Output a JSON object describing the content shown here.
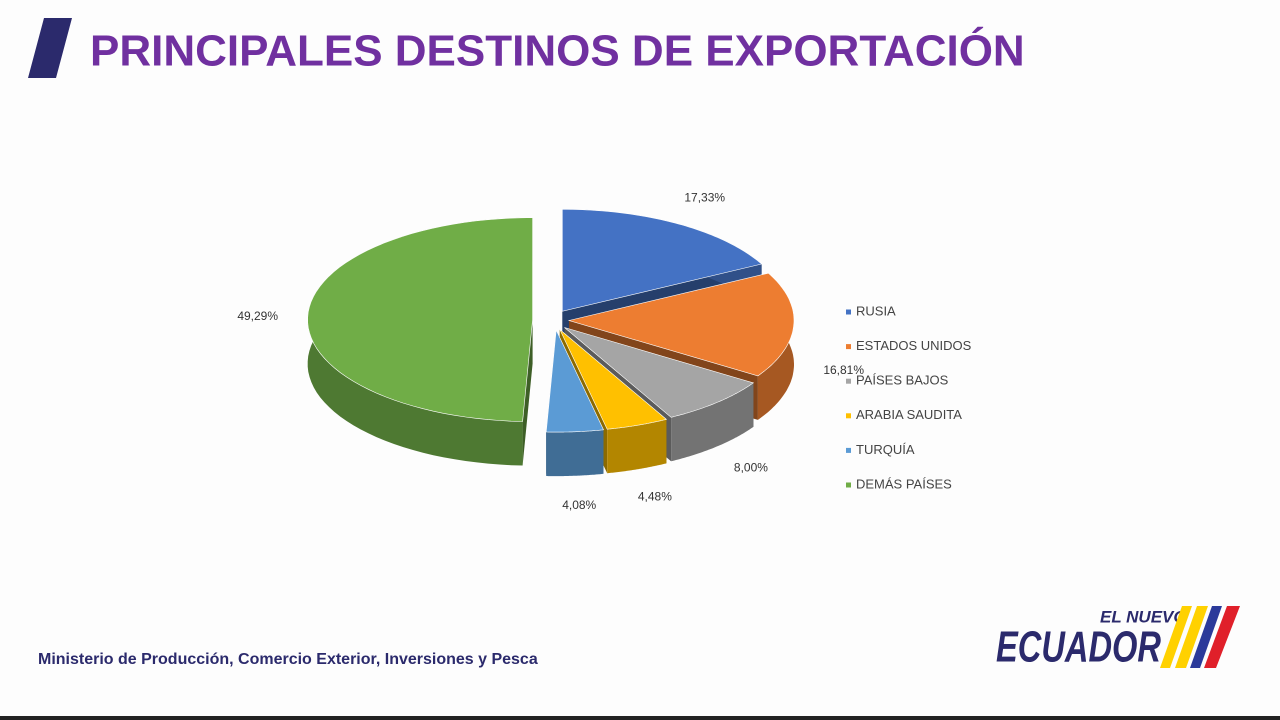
{
  "chart_data": {
    "type": "pie3d",
    "title": "PRINCIPALES DESTINOS DE EXPORTACIÓN",
    "categories": [
      "RUSIA",
      "ESTADOS UNIDOS",
      "PAÍSES BAJOS",
      "ARABIA SAUDITA",
      "TURQUÍA",
      "DEMÁS PAÍSES"
    ],
    "values": [
      17.33,
      16.81,
      8.0,
      4.48,
      4.08,
      49.29
    ],
    "value_labels": [
      "17,33%",
      "16,81%",
      "8,00%",
      "4,48%",
      "4,08%",
      "49,29%"
    ],
    "colors": [
      "#4472c4",
      "#ed7d31",
      "#a5a5a5",
      "#ffc000",
      "#5b9bd5",
      "#70ad47"
    ],
    "legend": "right"
  },
  "footer": {
    "text": "Ministerio de Producción, Comercio Exterior, Inversiones y Pesca"
  },
  "logo": {
    "line1": "EL NUEVO",
    "line2": "ECUADOR"
  }
}
